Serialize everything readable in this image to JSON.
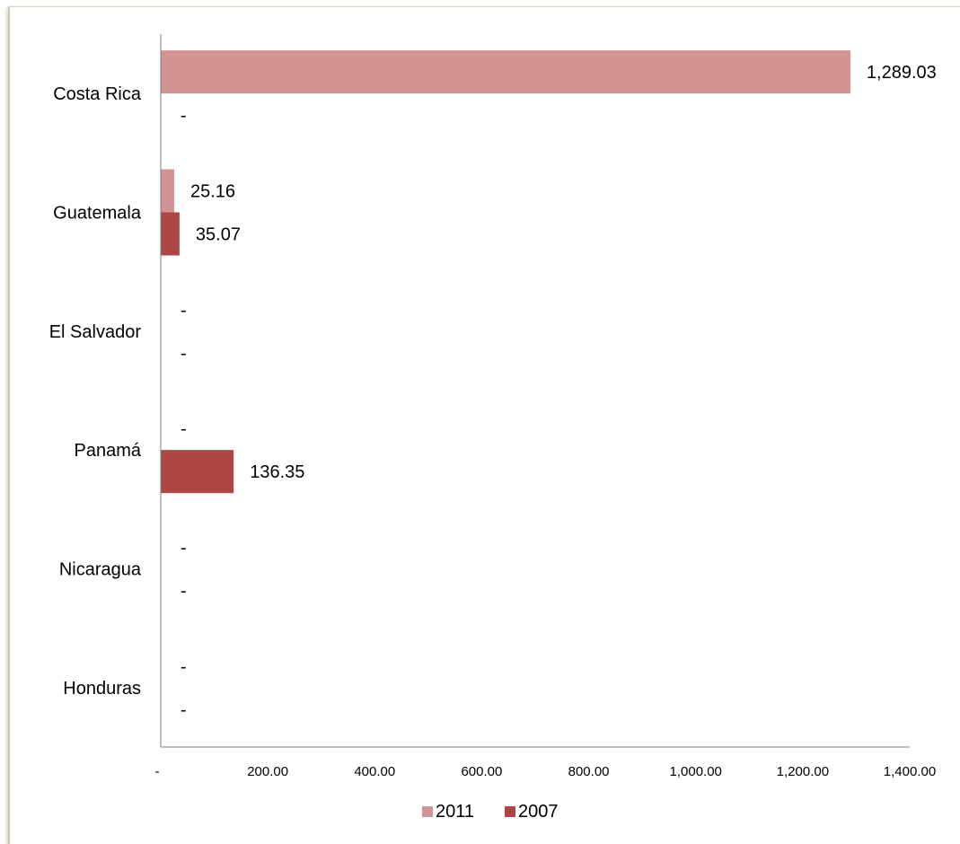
{
  "chart_data": {
    "type": "bar",
    "orientation": "horizontal",
    "categories": [
      "Costa Rica",
      "Guatemala",
      "El Salvador",
      "Panamá",
      "Nicaragua",
      "Honduras"
    ],
    "series": [
      {
        "name": "2011",
        "color": "#d39393",
        "values": [
          1289.03,
          25.16,
          0,
          0,
          0,
          0
        ],
        "labels": [
          "1,289.03",
          "25.16",
          "-",
          "-",
          "-",
          "-"
        ]
      },
      {
        "name": "2007",
        "color": "#ad4644",
        "values": [
          0,
          35.07,
          0,
          136.35,
          0,
          0
        ],
        "labels": [
          "-",
          "35.07",
          "-",
          "136.35",
          "-",
          "-"
        ]
      }
    ],
    "xlim": [
      0,
      1400
    ],
    "xticks": [
      0,
      200,
      400,
      600,
      800,
      1000,
      1200,
      1400
    ],
    "xtick_labels": [
      "-",
      "200.00",
      "400.00",
      "600.00",
      "800.00",
      "1,000.00",
      "1,200.00",
      "1,400.00"
    ],
    "grid": false,
    "legend_position": "bottom"
  }
}
